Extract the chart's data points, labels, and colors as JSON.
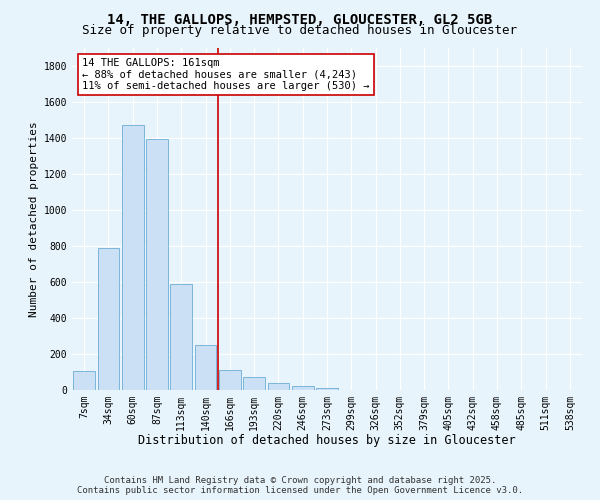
{
  "title_line1": "14, THE GALLOPS, HEMPSTED, GLOUCESTER, GL2 5GB",
  "title_line2": "Size of property relative to detached houses in Gloucester",
  "xlabel": "Distribution of detached houses by size in Gloucester",
  "ylabel": "Number of detached properties",
  "bar_labels": [
    "7sqm",
    "34sqm",
    "60sqm",
    "87sqm",
    "113sqm",
    "140sqm",
    "166sqm",
    "193sqm",
    "220sqm",
    "246sqm",
    "273sqm",
    "299sqm",
    "326sqm",
    "352sqm",
    "379sqm",
    "405sqm",
    "432sqm",
    "458sqm",
    "485sqm",
    "511sqm",
    "538sqm"
  ],
  "bar_values": [
    105,
    790,
    1470,
    1390,
    590,
    250,
    110,
    70,
    40,
    20,
    10,
    0,
    0,
    0,
    0,
    0,
    0,
    0,
    0,
    0,
    0
  ],
  "bar_color": "#cce0f5",
  "bar_edge_color": "#6baed6",
  "vline_color": "#cc0000",
  "vline_pos": 5.5,
  "annotation_text": "14 THE GALLOPS: 161sqm\n← 88% of detached houses are smaller (4,243)\n11% of semi-detached houses are larger (530) →",
  "annotation_box_facecolor": "#ffffff",
  "annotation_box_edgecolor": "#cc0000",
  "ylim": [
    0,
    1900
  ],
  "yticks": [
    0,
    200,
    400,
    600,
    800,
    1000,
    1200,
    1400,
    1600,
    1800
  ],
  "footnote": "Contains HM Land Registry data © Crown copyright and database right 2025.\nContains public sector information licensed under the Open Government Licence v3.0.",
  "background_color": "#e8f4fb",
  "grid_color": "#ffffff",
  "title_fontsize": 10,
  "subtitle_fontsize": 9,
  "xlabel_fontsize": 8.5,
  "ylabel_fontsize": 8,
  "tick_fontsize": 7,
  "annotation_fontsize": 7.5,
  "footnote_fontsize": 6.5
}
